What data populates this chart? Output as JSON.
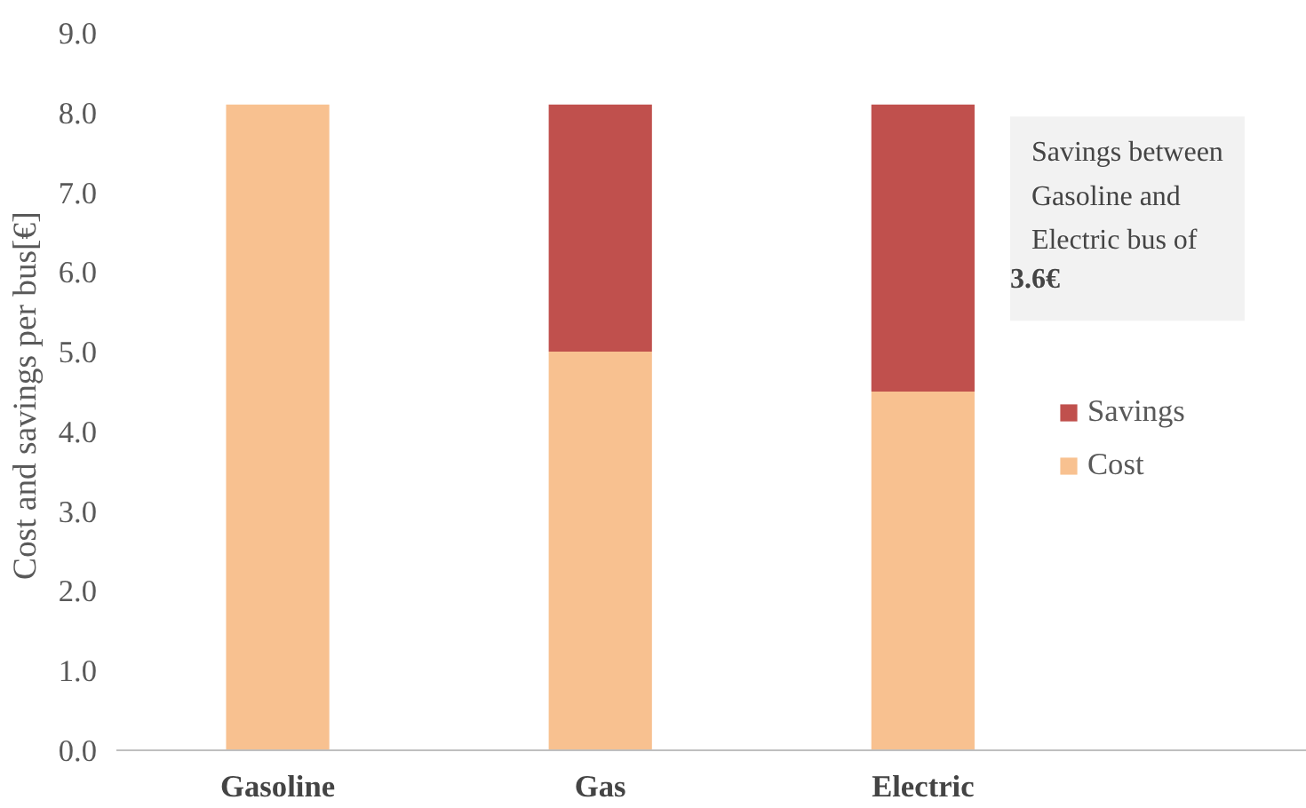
{
  "chart_data": {
    "type": "bar",
    "stacked": true,
    "categories": [
      "Gasoline",
      "Gas",
      "Electric"
    ],
    "series": [
      {
        "name": "Cost",
        "color": "#f8c190",
        "values": [
          8.1,
          5.0,
          4.5
        ]
      },
      {
        "name": "Savings",
        "color": "#c0504d",
        "values": [
          null,
          3.1,
          3.6
        ]
      }
    ],
    "ylabel": "Cost  and savings per bus[€]",
    "ylim": [
      0,
      9
    ],
    "yticks": [
      {
        "value": 0,
        "label": "0.0"
      },
      {
        "value": 1,
        "label": "1.0"
      },
      {
        "value": 2,
        "label": "2.0"
      },
      {
        "value": 3,
        "label": "3.0"
      },
      {
        "value": 4,
        "label": "4.0"
      },
      {
        "value": 5,
        "label": "5.0"
      },
      {
        "value": 6,
        "label": "6.0"
      },
      {
        "value": 7,
        "label": "7.0"
      },
      {
        "value": 8,
        "label": "8.0"
      },
      {
        "value": 9,
        "label": "9.0"
      }
    ],
    "annotations": [
      "Savings between Gasoline and Electric bus of 3.6€"
    ],
    "grid": false,
    "legend": "right"
  }
}
